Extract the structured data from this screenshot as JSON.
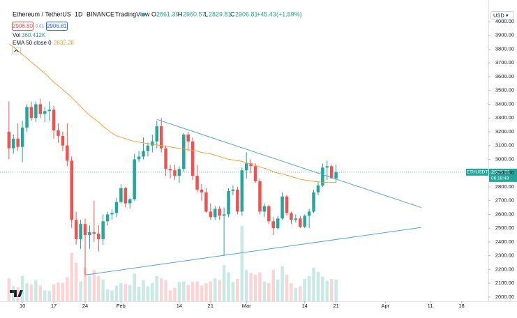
{
  "header": {
    "symbol": "Ethereum / TetherUS",
    "interval": "1D",
    "exchange": "BINANCE",
    "source": "TradingView",
    "open_label": "O",
    "open": "2861.39",
    "high_label": "H",
    "high": "2960.57",
    "low_label": "L",
    "low": "2829.81",
    "close_label": "C",
    "close": "2906.81",
    "change": "+45.43",
    "change_pct": "(+1.59%)",
    "sell": "2906.80",
    "spread": "0.01",
    "buy": "2906.81",
    "vol_label": "Vol",
    "vol": "360.412K",
    "ema_label": "EMA 50 close 0",
    "ema": "2832.28",
    "currency": "USD ▾",
    "ticker": "ETHUSDT",
    "countdown": "06:18:49"
  },
  "chart_data": {
    "type": "candlestick",
    "up_color": "#26a69a",
    "down_color": "#ef5350",
    "ema_color": "#f7a13d",
    "trend_color": "#4fa6e0",
    "grid": false,
    "xlim": [
      5,
      114
    ],
    "ylim": [
      1969,
      4157
    ],
    "volume_ylim": [
      0,
      5000
    ],
    "xticks": [
      10,
      17,
      24,
      {
        "value": 32,
        "label": "Feb"
      },
      {
        "value": 45,
        "label": "14"
      },
      {
        "value": 52,
        "label": "21"
      },
      {
        "value": 60,
        "label": "Mar"
      },
      {
        "value": 73,
        "label": "14"
      },
      {
        "value": 80,
        "label": "21"
      },
      {
        "value": 91,
        "label": "Apr"
      },
      {
        "value": 101,
        "label": "11"
      },
      {
        "value": 108,
        "label": "18"
      }
    ],
    "yticks": [
      {
        "value": 2000,
        "label": "2000.00"
      },
      {
        "value": 2100,
        "label": "2100.00"
      },
      {
        "value": 2200,
        "label": "2200.00"
      },
      {
        "value": 2300,
        "label": "2300.00"
      },
      {
        "value": 2400,
        "label": "2400.00"
      },
      {
        "value": 2500,
        "label": "2500.00"
      },
      {
        "value": 2600,
        "label": "2600.00"
      },
      {
        "value": 2700,
        "label": "2700.00"
      },
      {
        "value": 2800,
        "label": "2800.00"
      },
      {
        "value": 2900,
        "label": "2900.00"
      },
      {
        "value": 3000,
        "label": "3000.00"
      },
      {
        "value": 3100,
        "label": "3100.00"
      },
      {
        "value": 3200,
        "label": "3200.00"
      },
      {
        "value": 3300,
        "label": "3300.00"
      },
      {
        "value": 3400,
        "label": "3400.00"
      },
      {
        "value": 3500,
        "label": "3500.00"
      },
      {
        "value": 3600,
        "label": "3600.00"
      },
      {
        "value": 3700,
        "label": "3700.00"
      },
      {
        "value": 3800,
        "label": "3800.00"
      },
      {
        "value": 3900,
        "label": "3900.00"
      },
      {
        "value": 4000,
        "label": "4000.00"
      }
    ],
    "x": [
      7,
      8,
      9,
      10,
      11,
      12,
      13,
      14,
      15,
      16,
      17,
      18,
      19,
      20,
      21,
      22,
      23,
      24,
      25,
      26,
      27,
      28,
      29,
      30,
      31,
      32,
      33,
      34,
      35,
      36,
      37,
      38,
      39,
      40,
      41,
      42,
      43,
      44,
      45,
      46,
      47,
      48,
      49,
      50,
      51,
      52,
      53,
      54,
      55,
      56,
      57,
      58,
      59,
      60,
      61,
      62,
      63,
      64,
      65,
      66,
      67,
      68,
      69,
      70,
      71,
      72,
      73,
      74,
      75,
      76,
      77,
      78,
      79,
      80
    ],
    "open": [
      3200,
      3080,
      3150,
      3090,
      3230,
      3380,
      3300,
      3400,
      3330,
      3350,
      3360,
      3210,
      3170,
      3100,
      2990,
      2560,
      2420,
      2530,
      2450,
      2470,
      2460,
      2420,
      2550,
      2600,
      2610,
      2690,
      2790,
      2680,
      2710,
      3000,
      3020,
      3060,
      3100,
      3130,
      3240,
      3080,
      2930,
      2920,
      2880,
      2930,
      3180,
      3130,
      2880,
      2780,
      2760,
      2620,
      2580,
      2640,
      2590,
      2600,
      2770,
      2780,
      2620,
      2920,
      2970,
      2950,
      2840,
      2620,
      2660,
      2550,
      2500,
      2570,
      2730,
      2610,
      2560,
      2570,
      2510,
      2590,
      2620,
      2760,
      2810,
      2940,
      2950,
      2861.39
    ],
    "high": [
      3420,
      3180,
      3260,
      3280,
      3400,
      3420,
      3420,
      3440,
      3380,
      3420,
      3390,
      3260,
      3200,
      3260,
      3020,
      2620,
      2560,
      2570,
      2520,
      2700,
      2520,
      2600,
      2620,
      2640,
      2720,
      2820,
      2800,
      2720,
      3040,
      3060,
      3160,
      3120,
      3180,
      3280,
      3300,
      3100,
      2960,
      2960,
      2950,
      3190,
      3200,
      3160,
      2960,
      2820,
      2790,
      2680,
      2660,
      2660,
      2650,
      2790,
      2810,
      2800,
      2940,
      3050,
      3000,
      2970,
      2860,
      2680,
      2670,
      2580,
      2590,
      2760,
      2740,
      2620,
      2600,
      2590,
      2600,
      2640,
      2780,
      2840,
      2970,
      2990,
      2960,
      2960.57
    ],
    "low": [
      3000,
      3040,
      3060,
      2980,
      3200,
      3280,
      3270,
      3300,
      3270,
      3280,
      3150,
      3120,
      3060,
      2950,
      2500,
      2380,
      2350,
      2160,
      2350,
      2400,
      2330,
      2380,
      2520,
      2560,
      2580,
      2680,
      2650,
      2640,
      2700,
      2980,
      3000,
      3020,
      3050,
      3080,
      3050,
      2880,
      2860,
      2850,
      2830,
      2910,
      3060,
      2850,
      2760,
      2700,
      2610,
      2560,
      2560,
      2560,
      2300,
      2580,
      2740,
      2600,
      2590,
      2860,
      2900,
      2830,
      2600,
      2580,
      2530,
      2450,
      2490,
      2560,
      2590,
      2530,
      2540,
      2500,
      2500,
      2500,
      2610,
      2740,
      2800,
      2850,
      2860,
      2829.81
    ],
    "close": [
      3080,
      3150,
      3090,
      3230,
      3380,
      3300,
      3400,
      3330,
      3350,
      3360,
      3210,
      3170,
      3100,
      2990,
      2560,
      2420,
      2530,
      2450,
      2470,
      2460,
      2420,
      2550,
      2600,
      2610,
      2690,
      2790,
      2680,
      2710,
      3000,
      3020,
      3060,
      3100,
      3130,
      3240,
      3080,
      2930,
      2920,
      2880,
      2930,
      3180,
      3130,
      2880,
      2780,
      2760,
      2620,
      2580,
      2640,
      2590,
      2600,
      2770,
      2780,
      2620,
      2920,
      2970,
      2950,
      2840,
      2620,
      2660,
      2550,
      2500,
      2570,
      2730,
      2610,
      2560,
      2570,
      2510,
      2590,
      2620,
      2760,
      2810,
      2940,
      2950,
      2861.39,
      2906.81
    ],
    "volume": [
      380,
      250,
      230,
      420,
      300,
      280,
      350,
      260,
      180,
      170,
      280,
      310,
      300,
      400,
      800,
      640,
      330,
      560,
      420,
      520,
      420,
      360,
      200,
      180,
      260,
      300,
      290,
      270,
      460,
      240,
      350,
      250,
      300,
      420,
      380,
      350,
      180,
      220,
      320,
      330,
      270,
      320,
      330,
      260,
      300,
      330,
      380,
      350,
      600,
      480,
      320,
      370,
      1250,
      520,
      470,
      440,
      480,
      330,
      300,
      520,
      360,
      580,
      440,
      300,
      220,
      250,
      370,
      420,
      560,
      490,
      410,
      340,
      370,
      360.412
    ],
    "ema": [
      3840,
      3815,
      3790,
      3760,
      3735,
      3705,
      3680,
      3650,
      3625,
      3595,
      3560,
      3535,
      3505,
      3480,
      3450,
      3415,
      3385,
      3350,
      3320,
      3295,
      3270,
      3240,
      3215,
      3190,
      3170,
      3160,
      3150,
      3140,
      3130,
      3125,
      3120,
      3115,
      3110,
      3105,
      3100,
      3095,
      3090,
      3085,
      3080,
      3075,
      3070,
      3065,
      3060,
      3050,
      3045,
      3040,
      3030,
      3020,
      3010,
      3000,
      2995,
      2990,
      2985,
      2975,
      2965,
      2955,
      2945,
      2935,
      2925,
      2910,
      2900,
      2895,
      2885,
      2875,
      2865,
      2855,
      2850,
      2845,
      2840,
      2835,
      2833,
      2832,
      2831,
      2832.28
    ],
    "trend_lines": [
      {
        "x": [
          40,
          99
        ],
        "y": [
          3290,
          2650
        ]
      },
      {
        "x": [
          24,
          99
        ],
        "y": [
          2160,
          2505
        ]
      }
    ]
  }
}
